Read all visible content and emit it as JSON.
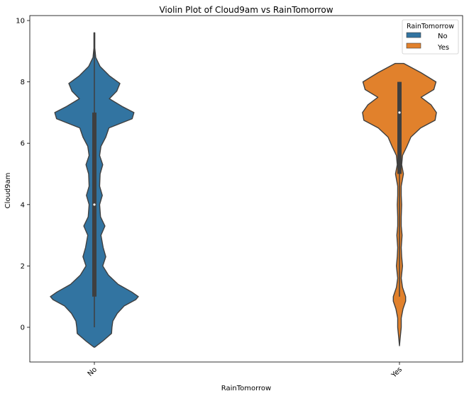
{
  "chart_data": {
    "type": "violin",
    "title": "Violin Plot of Cloud9am vs RainTomorrow",
    "xlabel": "RainTomorrow",
    "ylabel": "Cloud9am",
    "categories": [
      "No",
      "Yes"
    ],
    "ylim": [
      -1.1,
      10.2
    ],
    "yticks": [
      0,
      2,
      4,
      6,
      8,
      10
    ],
    "legend": {
      "title": "RainTomorrow",
      "entries": [
        "No",
        "Yes"
      ],
      "placement": "top-right"
    },
    "colors": {
      "No": "#3274a1",
      "Yes": "#e1812c",
      "outline": "#3f3f3f",
      "box": "#3f3f3f"
    },
    "series": [
      {
        "name": "No",
        "box": {
          "q1": 1,
          "median": 4,
          "q3": 7,
          "whisker_low": 0,
          "whisker_high": 9.6
        },
        "density": [
          [
            -0.65,
            0.01
          ],
          [
            -0.45,
            0.19
          ],
          [
            -0.2,
            0.39
          ],
          [
            0.0,
            0.4
          ],
          [
            0.2,
            0.42
          ],
          [
            0.45,
            0.52
          ],
          [
            0.7,
            0.68
          ],
          [
            0.9,
            0.94
          ],
          [
            1.0,
            1.0
          ],
          [
            1.15,
            0.85
          ],
          [
            1.4,
            0.54
          ],
          [
            1.7,
            0.32
          ],
          [
            2.0,
            0.19
          ],
          [
            2.3,
            0.26
          ],
          [
            2.6,
            0.2
          ],
          [
            3.0,
            0.15
          ],
          [
            3.3,
            0.24
          ],
          [
            3.6,
            0.14
          ],
          [
            4.0,
            0.12
          ],
          [
            4.3,
            0.18
          ],
          [
            4.6,
            0.12
          ],
          [
            5.0,
            0.13
          ],
          [
            5.3,
            0.19
          ],
          [
            5.6,
            0.12
          ],
          [
            5.9,
            0.15
          ],
          [
            6.2,
            0.26
          ],
          [
            6.5,
            0.33
          ],
          [
            6.8,
            0.86
          ],
          [
            7.0,
            0.9
          ],
          [
            7.2,
            0.63
          ],
          [
            7.45,
            0.34
          ],
          [
            7.7,
            0.51
          ],
          [
            7.95,
            0.58
          ],
          [
            8.2,
            0.34
          ],
          [
            8.5,
            0.13
          ],
          [
            8.8,
            0.03
          ],
          [
            9.1,
            0.01
          ],
          [
            9.6,
            0.01
          ]
        ]
      },
      {
        "name": "Yes",
        "box": {
          "q1": 5,
          "median": 7,
          "q3": 8,
          "whisker_low": 1,
          "whisker_high": 8
        },
        "density": [
          [
            -0.6,
            0.0
          ],
          [
            -0.3,
            0.02
          ],
          [
            0.0,
            0.04
          ],
          [
            0.3,
            0.04
          ],
          [
            0.6,
            0.08
          ],
          [
            0.85,
            0.14
          ],
          [
            1.0,
            0.14
          ],
          [
            1.3,
            0.07
          ],
          [
            1.6,
            0.04
          ],
          [
            2.0,
            0.07
          ],
          [
            2.3,
            0.05
          ],
          [
            2.6,
            0.04
          ],
          [
            3.0,
            0.06
          ],
          [
            3.3,
            0.04
          ],
          [
            3.6,
            0.04
          ],
          [
            4.0,
            0.05
          ],
          [
            4.3,
            0.04
          ],
          [
            4.6,
            0.04
          ],
          [
            5.0,
            0.09
          ],
          [
            5.3,
            0.05
          ],
          [
            5.6,
            0.07
          ],
          [
            5.9,
            0.17
          ],
          [
            6.2,
            0.26
          ],
          [
            6.5,
            0.48
          ],
          [
            6.75,
            0.81
          ],
          [
            7.0,
            0.84
          ],
          [
            7.25,
            0.72
          ],
          [
            7.5,
            0.49
          ],
          [
            7.75,
            0.78
          ],
          [
            8.0,
            0.83
          ],
          [
            8.3,
            0.49
          ],
          [
            8.6,
            0.1
          ]
        ]
      }
    ]
  }
}
